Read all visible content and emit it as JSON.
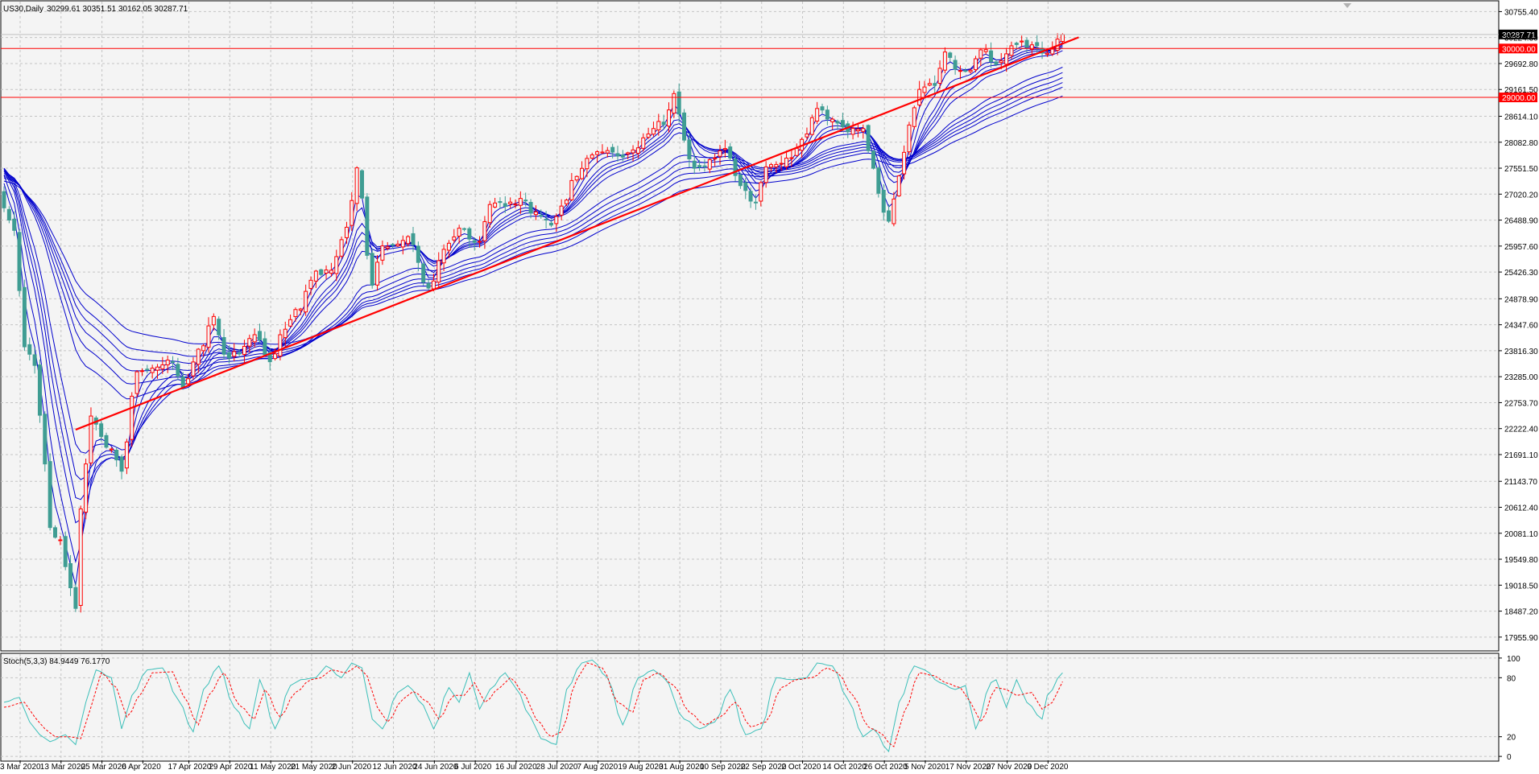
{
  "header": {
    "symbol": "US30,Daily",
    "ohlc": "30299.61 30351.51 30162.05 30287.71"
  },
  "colors": {
    "background": "#f4f4f4",
    "grid": "#c4c4c4",
    "bull": "#ff0000",
    "bear": "#3f9d93",
    "ma": "#0000cc",
    "trendline": "#ff0000",
    "hline": "#ff0000",
    "stoch_main": "#3cbfb9",
    "stoch_signal": "#ff0000"
  },
  "chart_data": [
    {
      "type": "candlestick",
      "title": "US30,Daily",
      "ylim": [
        17690,
        30960
      ],
      "y_ticks": [
        "30755.40",
        "30224.30",
        "29692.80",
        "29161.50",
        "28614.10",
        "28082.80",
        "27551.50",
        "27020.20",
        "26488.90",
        "25957.60",
        "25426.30",
        "24878.90",
        "24347.60",
        "23816.30",
        "23285.00",
        "22753.70",
        "22222.40",
        "21691.10",
        "21143.70",
        "20612.40",
        "20081.10",
        "19549.80",
        "19018.50",
        "18487.20",
        "17955.90"
      ],
      "x_ticks": [
        "3 Mar 2020",
        "13 Mar 2020",
        "25 Mar 2020",
        "6 Apr 2020",
        "17 Apr 2020",
        "29 Apr 2020",
        "11 May 2020",
        "21 May 2020",
        "2 Jun 2020",
        "12 Jun 2020",
        "24 Jun 2020",
        "6 Jul 2020",
        "16 Jul 2020",
        "28 Jul 2020",
        "7 Aug 2020",
        "19 Aug 2020",
        "31 Aug 2020",
        "10 Sep 2020",
        "22 Sep 2020",
        "2 Oct 2020",
        "14 Oct 2020",
        "26 Oct 2020",
        "5 Nov 2020",
        "17 Nov 2020",
        "27 Nov 2020",
        "9 Dec 2020"
      ],
      "current_price": "30287.71",
      "horizontal_lines": [
        {
          "value": 30000,
          "label": "30000.00"
        },
        {
          "value": 29000,
          "label": "29000.00"
        }
      ],
      "trendline": [
        {
          "date": "23 Mar 2020",
          "value": 22200
        },
        {
          "date": "17 Dec 2020",
          "value": 30100
        }
      ],
      "moving_average_ribbon": "12 exponential moving averages (blue)",
      "closes_anchor_points": [
        [
          "3 Mar 2020",
          26700
        ],
        [
          "5 Mar 2020",
          26300
        ],
        [
          "9 Mar 2020",
          23900
        ],
        [
          "11 Mar 2020",
          23500
        ],
        [
          "13 Mar 2020",
          21500
        ],
        [
          "16 Mar 2020",
          20200
        ],
        [
          "18 Mar 2020",
          19900
        ],
        [
          "20 Mar 2020",
          19000
        ],
        [
          "23 Mar 2020",
          18600
        ],
        [
          "24 Mar 2020",
          20600
        ],
        [
          "26 Mar 2020",
          22500
        ],
        [
          "31 Mar 2020",
          21900
        ],
        [
          "3 Apr 2020",
          21400
        ],
        [
          "8 Apr 2020",
          23400
        ],
        [
          "13 Apr 2020",
          23500
        ],
        [
          "17 Apr 2020",
          23600
        ],
        [
          "21 Apr 2020",
          23100
        ],
        [
          "24 Apr 2020",
          23800
        ],
        [
          "29 Apr 2020",
          24500
        ],
        [
          "1 May 2020",
          23700
        ],
        [
          "6 May 2020",
          23800
        ],
        [
          "11 May 2020",
          24200
        ],
        [
          "14 May 2020",
          23600
        ],
        [
          "19 May 2020",
          24300
        ],
        [
          "21 May 2020",
          24600
        ],
        [
          "27 May 2020",
          25400
        ],
        [
          "1 Jun 2020",
          25500
        ],
        [
          "4 Jun 2020",
          26300
        ],
        [
          "8 Jun 2020",
          27500
        ],
        [
          "11 Jun 2020",
          25200
        ],
        [
          "15 Jun 2020",
          26000
        ],
        [
          "18 Jun 2020",
          26000
        ],
        [
          "22 Jun 2020",
          26100
        ],
        [
          "26 Jun 2020",
          25100
        ],
        [
          "1 Jul 2020",
          25900
        ],
        [
          "6 Jul 2020",
          26300
        ],
        [
          "10 Jul 2020",
          26000
        ],
        [
          "14 Jul 2020",
          26800
        ],
        [
          "17 Jul 2020",
          26800
        ],
        [
          "22 Jul 2020",
          26900
        ],
        [
          "27 Jul 2020",
          26600
        ],
        [
          "30 Jul 2020",
          26400
        ],
        [
          "3 Aug 2020",
          26800
        ],
        [
          "6 Aug 2020",
          27400
        ],
        [
          "10 Aug 2020",
          27800
        ],
        [
          "13 Aug 2020",
          27900
        ],
        [
          "18 Aug 2020",
          27800
        ],
        [
          "21 Aug 2020",
          27900
        ],
        [
          "26 Aug 2020",
          28300
        ],
        [
          "31 Aug 2020",
          28500
        ],
        [
          "2 Sep 2020",
          29100
        ],
        [
          "4 Sep 2020",
          28100
        ],
        [
          "8 Sep 2020",
          27500
        ],
        [
          "11 Sep 2020",
          27700
        ],
        [
          "16 Sep 2020",
          28000
        ],
        [
          "21 Sep 2020",
          27200
        ],
        [
          "24 Sep 2020",
          26800
        ],
        [
          "28 Sep 2020",
          27600
        ],
        [
          "2 Oct 2020",
          27700
        ],
        [
          "7 Oct 2020",
          28100
        ],
        [
          "12 Oct 2020",
          28800
        ],
        [
          "15 Oct 2020",
          28500
        ],
        [
          "20 Oct 2020",
          28300
        ],
        [
          "23 Oct 2020",
          28400
        ],
        [
          "27 Oct 2020",
          27500
        ],
        [
          "29 Oct 2020",
          26600
        ],
        [
          "30 Oct 2020",
          26500
        ],
        [
          "3 Nov 2020",
          27400
        ],
        [
          "5 Nov 2020",
          28400
        ],
        [
          "9 Nov 2020",
          29200
        ],
        [
          "12 Nov 2020",
          29300
        ],
        [
          "16 Nov 2020",
          29900
        ],
        [
          "19 Nov 2020",
          29500
        ],
        [
          "23 Nov 2020",
          29600
        ],
        [
          "25 Nov 2020",
          30000
        ],
        [
          "30 Nov 2020",
          29700
        ],
        [
          "3 Dec 2020",
          30000
        ],
        [
          "7 Dec 2020",
          30100
        ],
        [
          "10 Dec 2020",
          30000
        ],
        [
          "14 Dec 2020",
          29900
        ],
        [
          "17 Dec 2020",
          30287.71
        ]
      ]
    },
    {
      "type": "line",
      "title": "Stoch(5,3,3) 84.9449 76.1770",
      "ylim": [
        -4,
        104
      ],
      "y_ticks": [
        "100",
        "80",
        "20",
        "0"
      ],
      "levels": [
        80,
        20
      ],
      "series": [
        {
          "name": "main",
          "anchor_points": [
            [
              "3 Mar 2020",
              55
            ],
            [
              "6 Mar 2020",
              60
            ],
            [
              "10 Mar 2020",
              35
            ],
            [
              "12 Mar 2020",
              22
            ],
            [
              "16 Mar 2020",
              15
            ],
            [
              "19 Mar 2020",
              22
            ],
            [
              "23 Mar 2020",
              12
            ],
            [
              "25 Mar 2020",
              55
            ],
            [
              "27 Mar 2020",
              88
            ],
            [
              "1 Apr 2020",
              80
            ],
            [
              "3 Apr 2020",
              28
            ],
            [
              "7 Apr 2020",
              62
            ],
            [
              "10 Apr 2020",
              88
            ],
            [
              "15 Apr 2020",
              90
            ],
            [
              "20 Apr 2020",
              58
            ],
            [
              "23 Apr 2020",
              25
            ],
            [
              "27 Apr 2020",
              68
            ],
            [
              "30 Apr 2020",
              92
            ],
            [
              "5 May 2020",
              50
            ],
            [
              "8 May 2020",
              28
            ],
            [
              "12 May 2020",
              78
            ],
            [
              "15 May 2020",
              28
            ],
            [
              "20 May 2020",
              72
            ],
            [
              "22 May 2020",
              78
            ],
            [
              "27 May 2020",
              80
            ],
            [
              "29 May 2020",
              92
            ],
            [
              "3 Jun 2020",
              80
            ],
            [
              "5 Jun 2020",
              95
            ],
            [
              "9 Jun 2020",
              90
            ],
            [
              "11 Jun 2020",
              38
            ],
            [
              "15 Jun 2020",
              28
            ],
            [
              "18 Jun 2020",
              65
            ],
            [
              "22 Jun 2020",
              72
            ],
            [
              "25 Jun 2020",
              52
            ],
            [
              "29 Jun 2020",
              28
            ],
            [
              "2 Jul 2020",
              70
            ],
            [
              "6 Jul 2020",
              55
            ],
            [
              "8 Jul 2020",
              85
            ],
            [
              "10 Jul 2020",
              48
            ],
            [
              "14 Jul 2020",
              68
            ],
            [
              "17 Jul 2020",
              85
            ],
            [
              "21 Jul 2020",
              70
            ],
            [
              "24 Jul 2020",
              40
            ],
            [
              "28 Jul 2020",
              18
            ],
            [
              "31 Jul 2020",
              12
            ],
            [
              "4 Aug 2020",
              68
            ],
            [
              "7 Aug 2020",
              95
            ],
            [
              "11 Aug 2020",
              98
            ],
            [
              "14 Aug 2020",
              80
            ],
            [
              "19 Aug 2020",
              32
            ],
            [
              "24 Aug 2020",
              80
            ],
            [
              "27 Aug 2020",
              88
            ],
            [
              "31 Aug 2020",
              80
            ],
            [
              "4 Sep 2020",
              38
            ],
            [
              "9 Sep 2020",
              28
            ],
            [
              "14 Sep 2020",
              35
            ],
            [
              "17 Sep 2020",
              68
            ],
            [
              "22 Sep 2020",
              22
            ],
            [
              "25 Sep 2020",
              28
            ],
            [
              "30 Sep 2020",
              80
            ],
            [
              "5 Oct 2020",
              78
            ],
            [
              "8 Oct 2020",
              80
            ],
            [
              "12 Oct 2020",
              95
            ],
            [
              "15 Oct 2020",
              92
            ],
            [
              "20 Oct 2020",
              58
            ],
            [
              "23 Oct 2020",
              20
            ],
            [
              "27 Oct 2020",
              28
            ],
            [
              "30 Oct 2020",
              5
            ],
            [
              "3 Nov 2020",
              55
            ],
            [
              "6 Nov 2020",
              92
            ],
            [
              "10 Nov 2020",
              88
            ],
            [
              "13 Nov 2020",
              75
            ],
            [
              "18 Nov 2020",
              68
            ],
            [
              "20 Nov 2020",
              72
            ],
            [
              "24 Nov 2020",
              28
            ],
            [
              "27 Nov 2020",
              75
            ],
            [
              "30 Nov 2020",
              78
            ],
            [
              "2 Dec 2020",
              50
            ],
            [
              "4 Dec 2020",
              78
            ],
            [
              "8 Dec 2020",
              55
            ],
            [
              "11 Dec 2020",
              38
            ],
            [
              "14 Dec 2020",
              62
            ],
            [
              "17 Dec 2020",
              85
            ]
          ]
        },
        {
          "name": "signal",
          "anchor_points": [
            [
              "3 Mar 2020",
              50
            ],
            [
              "7 Mar 2020",
              55
            ],
            [
              "11 Mar 2020",
              40
            ],
            [
              "13 Mar 2020",
              28
            ],
            [
              "17 Mar 2020",
              20
            ],
            [
              "20 Mar 2020",
              20
            ],
            [
              "24 Mar 2020",
              18
            ],
            [
              "26 Mar 2020",
              50
            ],
            [
              "30 Mar 2020",
              85
            ],
            [
              "2 Apr 2020",
              70
            ],
            [
              "6 Apr 2020",
              40
            ],
            [
              "9 Apr 2020",
              65
            ],
            [
              "13 Apr 2020",
              85
            ],
            [
              "17 Apr 2020",
              86
            ],
            [
              "21 Apr 2020",
              62
            ],
            [
              "24 Apr 2020",
              32
            ],
            [
              "28 Apr 2020",
              62
            ],
            [
              "1 May 2020",
              85
            ],
            [
              "6 May 2020",
              52
            ],
            [
              "11 May 2020",
              38
            ],
            [
              "13 May 2020",
              68
            ],
            [
              "18 May 2020",
              40
            ],
            [
              "21 May 2020",
              65
            ],
            [
              "26 May 2020",
              78
            ],
            [
              "28 May 2020",
              80
            ],
            [
              "1 Jun 2020",
              88
            ],
            [
              "4 Jun 2020",
              85
            ],
            [
              "8 Jun 2020",
              92
            ],
            [
              "10 Jun 2020",
              82
            ],
            [
              "12 Jun 2020",
              50
            ],
            [
              "16 Jun 2020",
              35
            ],
            [
              "19 Jun 2020",
              58
            ],
            [
              "23 Jun 2020",
              66
            ],
            [
              "26 Jun 2020",
              55
            ],
            [
              "30 Jun 2020",
              38
            ],
            [
              "3 Jul 2020",
              62
            ],
            [
              "7 Jul 2020",
              62
            ],
            [
              "9 Jul 2020",
              75
            ],
            [
              "13 Jul 2020",
              55
            ],
            [
              "16 Jul 2020",
              70
            ],
            [
              "20 Jul 2020",
              80
            ],
            [
              "23 Jul 2020",
              62
            ],
            [
              "27 Jul 2020",
              38
            ],
            [
              "30 Jul 2020",
              20
            ],
            [
              "3 Aug 2020",
              25
            ],
            [
              "6 Aug 2020",
              78
            ],
            [
              "10 Aug 2020",
              95
            ],
            [
              "13 Aug 2020",
              90
            ],
            [
              "18 Aug 2020",
              55
            ],
            [
              "21 Aug 2020",
              45
            ],
            [
              "25 Aug 2020",
              78
            ],
            [
              "28 Aug 2020",
              85
            ],
            [
              "2 Sep 2020",
              72
            ],
            [
              "7 Sep 2020",
              45
            ],
            [
              "10 Sep 2020",
              32
            ],
            [
              "15 Sep 2020",
              40
            ],
            [
              "18 Sep 2020",
              55
            ],
            [
              "23 Sep 2020",
              30
            ],
            [
              "28 Sep 2020",
              35
            ],
            [
              "1 Oct 2020",
              70
            ],
            [
              "6 Oct 2020",
              78
            ],
            [
              "9 Oct 2020",
              80
            ],
            [
              "14 Oct 2020",
              90
            ],
            [
              "16 Oct 2020",
              85
            ],
            [
              "21 Oct 2020",
              62
            ],
            [
              "26 Oct 2020",
              30
            ],
            [
              "28 Oct 2020",
              25
            ],
            [
              "2 Nov 2020",
              10
            ],
            [
              "4 Nov 2020",
              45
            ],
            [
              "9 Nov 2020",
              85
            ],
            [
              "12 Nov 2020",
              82
            ],
            [
              "16 Nov 2020",
              75
            ],
            [
              "19 Nov 2020",
              70
            ],
            [
              "23 Nov 2020",
              55
            ],
            [
              "25 Nov 2020",
              35
            ],
            [
              "30 Nov 2020",
              70
            ],
            [
              "2 Dec 2020",
              68
            ],
            [
              "4 Dec 2020",
              62
            ],
            [
              "9 Dec 2020",
              65
            ],
            [
              "11 Dec 2020",
              48
            ],
            [
              "15 Dec 2020",
              55
            ],
            [
              "17 Dec 2020",
              76
            ]
          ]
        }
      ]
    }
  ]
}
